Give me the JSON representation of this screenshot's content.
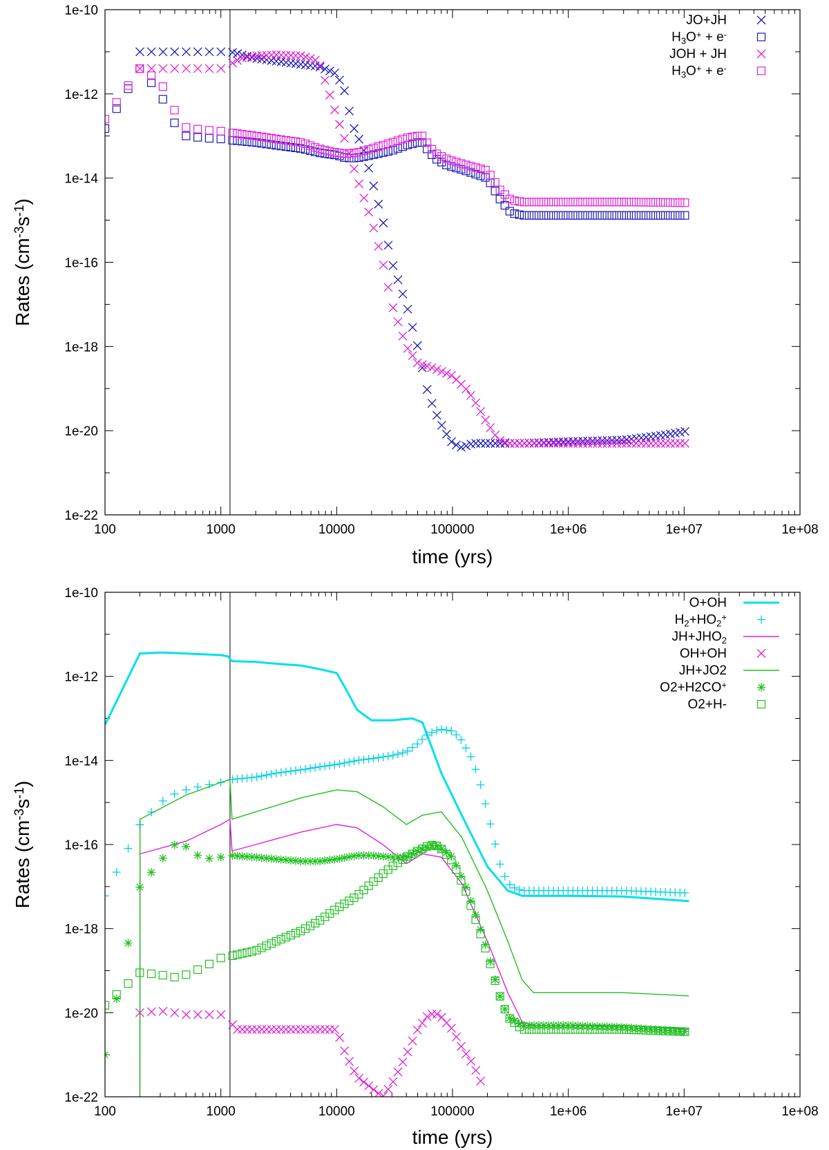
{
  "chart_data": [
    {
      "type": "scatter",
      "xscale": "log",
      "yscale": "log",
      "xlim": [
        100,
        100000000
      ],
      "ylim": [
        1e-22,
        1e-10
      ],
      "xlabel": "time (yrs)",
      "ylabel": "Rates (cm-3s-1)",
      "ylabel_parts": {
        "base": "Rates (cm",
        "sup1": "-3",
        "mid": "s",
        "sup2": "-1",
        "end": ")"
      },
      "x_ticks": [
        100,
        1000,
        10000,
        100000,
        1000000,
        10000000,
        100000000
      ],
      "x_tick_labels": [
        "100",
        "1000",
        "10000",
        "100000",
        "1e+06",
        "1e+07",
        "1e+08"
      ],
      "y_ticks": [
        1e-22,
        1e-20,
        1e-18,
        1e-16,
        1e-14,
        1e-12,
        1e-10
      ],
      "y_tick_labels": [
        "1e-22",
        "1e-20",
        "1e-18",
        "1e-16",
        "1e-14",
        "1e-12",
        "1e-10"
      ],
      "vline_x": 1200,
      "legend_position": "top-right",
      "series": [
        {
          "name": "JO+JH",
          "legend_parts": [
            {
              "t": "JO+JH"
            }
          ],
          "color": "#1a1ab8",
          "style": "cross",
          "x": [
            200,
            300,
            400,
            500,
            700,
            1000,
            1200,
            2000,
            3000,
            5000,
            7000,
            10000,
            12000,
            13500,
            17000,
            20000,
            25000,
            30000,
            40000,
            50000,
            60000,
            70000,
            85000,
            100000,
            120000,
            150000,
            200000,
            400000,
            1000000,
            3000000,
            7000000,
            11000000
          ],
          "y": [
            1e-11,
            1e-11,
            1e-11,
            1e-11,
            1e-11,
            1e-11,
            1e-11,
            7e-12,
            6e-12,
            5e-12,
            4.5e-12,
            3e-12,
            1e-12,
            2e-13,
            5e-14,
            1e-14,
            1e-15,
            1e-16,
            1e-17,
            1e-18,
            1e-19,
            3e-20,
            1e-20,
            5e-21,
            4e-21,
            5e-21,
            5e-21,
            5e-21,
            5.5e-21,
            6e-21,
            8e-21,
            1e-20
          ]
        },
        {
          "name": "H3O+ + e-",
          "legend_parts": [
            {
              "t": "H"
            },
            {
              "t": "3",
              "sub": true
            },
            {
              "t": "O"
            },
            {
              "t": "+",
              "sup": true
            },
            {
              "t": " + e"
            },
            {
              "t": "-",
              "sup": true
            }
          ],
          "color": "#1a1ab8",
          "style": "square",
          "x": [
            100,
            200,
            300,
            400,
            500,
            700,
            1000,
            1200,
            2000,
            3000,
            5000,
            7000,
            10000,
            12000,
            15000,
            20000,
            30000,
            40000,
            50000,
            55000,
            60000,
            70000,
            90000,
            120000,
            200000,
            260000,
            320000,
            400000,
            1000000,
            3000000,
            11000000
          ],
          "y": [
            1.5e-13,
            4e-12,
            1e-12,
            2e-13,
            1e-13,
            9e-14,
            8.5e-14,
            8e-14,
            7e-14,
            6e-14,
            5e-14,
            4e-14,
            3.5e-14,
            3e-14,
            3e-14,
            3.5e-14,
            4.5e-14,
            6e-14,
            7e-14,
            7e-14,
            5e-14,
            3e-14,
            2e-14,
            1.6e-14,
            1e-14,
            3e-15,
            1.5e-15,
            1.3e-15,
            1.3e-15,
            1.3e-15,
            1.3e-15
          ]
        },
        {
          "name": "JOH + JH",
          "legend_parts": [
            {
              "t": "JOH + JH"
            }
          ],
          "color": "#e020d8",
          "style": "cross",
          "x": [
            200,
            300,
            400,
            500,
            700,
            1000,
            1200,
            1500,
            2000,
            3000,
            5000,
            7000,
            10000,
            12000,
            15000,
            20000,
            25000,
            30000,
            40000,
            50000,
            70000,
            100000,
            130000,
            150000,
            200000,
            250000,
            300000,
            400000,
            1000000,
            3000000,
            11000000
          ],
          "y": [
            4e-12,
            4e-12,
            4e-12,
            4e-12,
            4e-12,
            4e-12,
            5e-12,
            7e-12,
            8e-12,
            8.5e-12,
            8e-12,
            6e-12,
            3e-13,
            7e-14,
            1e-14,
            1e-15,
            1e-16,
            1e-17,
            1e-18,
            4e-19,
            3e-19,
            2e-19,
            1e-19,
            6e-20,
            1.5e-20,
            6e-21,
            5e-21,
            5e-21,
            5e-21,
            5e-21,
            5e-21
          ]
        },
        {
          "name": "H3O+ + e-",
          "legend_parts": [
            {
              "t": "H"
            },
            {
              "t": "3",
              "sub": true
            },
            {
              "t": "O"
            },
            {
              "t": "+",
              "sup": true
            },
            {
              "t": " + e"
            },
            {
              "t": "-",
              "sup": true
            }
          ],
          "color": "#e020d8",
          "style": "square",
          "x": [
            100,
            200,
            300,
            400,
            500,
            700,
            1000,
            1200,
            2000,
            3000,
            5000,
            7000,
            10000,
            12000,
            15000,
            20000,
            30000,
            40000,
            50000,
            55000,
            60000,
            70000,
            90000,
            120000,
            200000,
            260000,
            320000,
            400000,
            1000000,
            3000000,
            11000000
          ],
          "y": [
            2.5e-13,
            4e-12,
            2e-12,
            4e-13,
            1.6e-13,
            1.4e-13,
            1.3e-13,
            1.2e-13,
            1e-13,
            8.5e-14,
            7e-14,
            5e-14,
            4e-14,
            3.8e-14,
            4e-14,
            5e-14,
            7e-14,
            9e-14,
            1e-13,
            1e-13,
            7e-14,
            4e-14,
            2.8e-14,
            2.2e-14,
            1.5e-14,
            5e-15,
            3e-15,
            2.7e-15,
            2.7e-15,
            2.7e-15,
            2.6e-15
          ]
        }
      ]
    },
    {
      "type": "line",
      "xscale": "log",
      "yscale": "log",
      "xlim": [
        100,
        100000000
      ],
      "ylim": [
        1e-22,
        1e-10
      ],
      "xlabel": "time (yrs)",
      "ylabel": "Rates (cm-3s-1)",
      "ylabel_parts": {
        "base": "Rates (cm",
        "sup1": "-3",
        "mid": "s",
        "sup2": "-1",
        "end": ")"
      },
      "x_ticks": [
        100,
        1000,
        10000,
        100000,
        1000000,
        10000000,
        100000000
      ],
      "x_tick_labels": [
        "100",
        "1000",
        "10000",
        "100000",
        "1e+06",
        "1e+07",
        "1e+08"
      ],
      "y_ticks": [
        1e-22,
        1e-20,
        1e-18,
        1e-16,
        1e-14,
        1e-12,
        1e-10
      ],
      "y_tick_labels": [
        "1e-22",
        "1e-20",
        "1e-18",
        "1e-16",
        "1e-14",
        "1e-12",
        "1e-10"
      ],
      "vline_x": 1200,
      "legend_position": "top-right",
      "series": [
        {
          "name": "O+OH",
          "legend_parts": [
            {
              "t": "O+OH"
            }
          ],
          "color": "#00e0e8",
          "style": "thickline",
          "x": [
            100,
            200,
            300,
            500,
            1000,
            1150,
            1250,
            2000,
            3000,
            5000,
            7000,
            10000,
            12000,
            15000,
            20000,
            30000,
            45000,
            55000,
            80000,
            120000,
            200000,
            300000,
            400000,
            1000000,
            3000000,
            11000000
          ],
          "y": [
            7e-14,
            3.5e-12,
            3.7e-12,
            3.5e-12,
            3.2e-12,
            3e-12,
            2.3e-12,
            2.2e-12,
            2e-12,
            1.8e-12,
            1.5e-12,
            1.2e-12,
            5e-13,
            1.6e-13,
            9e-14,
            9e-14,
            1e-13,
            8e-14,
            5e-15,
            5e-16,
            3e-17,
            8e-18,
            6e-18,
            6e-18,
            5.8e-18,
            4.5e-18
          ]
        },
        {
          "name": "H2+HO2+",
          "legend_parts": [
            {
              "t": "H"
            },
            {
              "t": "2",
              "sub": true
            },
            {
              "t": "+HO"
            },
            {
              "t": "2",
              "sub": true
            },
            {
              "t": "+",
              "sup": true
            }
          ],
          "color": "#00d0e0",
          "style": "plus",
          "x": [
            100,
            200,
            300,
            400,
            500,
            700,
            1000,
            1200,
            2000,
            3000,
            5000,
            7000,
            10000,
            15000,
            20000,
            30000,
            40000,
            50000,
            60000,
            70000,
            80000,
            100000,
            120000,
            150000,
            180000,
            220000,
            260000,
            300000,
            350000,
            400000,
            500000,
            1000000,
            3000000,
            11000000
          ],
          "y": [
            6e-18,
            3e-16,
            1e-15,
            1.6e-15,
            2e-15,
            2.5e-15,
            3e-15,
            3.5e-15,
            4e-15,
            5e-15,
            6e-15,
            7e-15,
            8e-15,
            1e-14,
            1.1e-14,
            1.3e-14,
            1.6e-14,
            2.5e-14,
            4e-14,
            5e-14,
            5.5e-14,
            5e-14,
            3e-14,
            1e-14,
            2e-15,
            2e-16,
            3e-17,
            1.2e-17,
            9e-18,
            8e-18,
            8e-18,
            8e-18,
            8e-18,
            7e-18
          ]
        },
        {
          "name": "JH+JHO2",
          "legend_parts": [
            {
              "t": "JH+JHO"
            },
            {
              "t": "2",
              "sub": true
            }
          ],
          "color": "#e020d8",
          "style": "line",
          "x": [
            200,
            200.5,
            500,
            1000,
            1200,
            1250,
            2000,
            5000,
            10000,
            15000,
            25000,
            40000,
            55000,
            80000,
            120000,
            200000,
            300000,
            400000,
            500000,
            1000000,
            3000000,
            11000000
          ],
          "y": [
            1e-22,
            6e-17,
            1.2e-16,
            3e-16,
            4e-16,
            7e-17,
            1e-16,
            2e-16,
            3e-16,
            2.5e-16,
            1e-16,
            3.5e-17,
            6e-17,
            5e-17,
            1.2e-17,
            5e-19,
            3e-20,
            6e-21,
            5e-21,
            5e-21,
            5e-21,
            4e-21
          ]
        },
        {
          "name": "OH+OH",
          "legend_parts": [
            {
              "t": "OH+OH"
            }
          ],
          "color": "#e020d8",
          "style": "cross",
          "x": [
            200,
            300,
            400,
            500,
            700,
            1000,
            1200,
            1300,
            2000,
            3000,
            5000,
            7000,
            10000,
            12000,
            15000,
            25000,
            30000,
            40000,
            50000,
            60000,
            70000,
            80000,
            100000,
            120000,
            150000,
            180000
          ],
          "y": [
            1e-20,
            1.1e-20,
            1e-20,
            9e-21,
            9e-21,
            9e-21,
            8e-21,
            4e-21,
            4e-21,
            4e-21,
            4e-21,
            4e-21,
            4e-21,
            1e-21,
            3e-22,
            1e-22,
            2e-22,
            1e-21,
            4e-21,
            8e-21,
            1e-20,
            8e-21,
            4e-21,
            1.5e-21,
            6e-22,
            2e-22
          ]
        },
        {
          "name": "JH+JO2",
          "legend_parts": [
            {
              "t": "JH+JO2"
            }
          ],
          "color": "#20c020",
          "style": "line",
          "x": [
            200,
            200.5,
            500,
            1000,
            1200,
            1250,
            2000,
            5000,
            10000,
            15000,
            25000,
            40000,
            55000,
            80000,
            120000,
            200000,
            300000,
            400000,
            500000,
            1000000,
            3000000,
            11000000
          ],
          "y": [
            1e-22,
            4e-16,
            1.5e-15,
            3e-15,
            3.5e-15,
            4e-16,
            6e-16,
            1.3e-15,
            2e-15,
            1.8e-15,
            8e-16,
            3e-16,
            5e-16,
            6e-16,
            1.5e-16,
            8e-18,
            5e-19,
            6e-20,
            3e-20,
            3e-20,
            3e-20,
            2.5e-20
          ]
        },
        {
          "name": "O2+H2CO+",
          "legend_parts": [
            {
              "t": "O2+H2CO"
            },
            {
              "t": "+",
              "sup": true
            }
          ],
          "color": "#20c020",
          "style": "asterisk",
          "x": [
            100,
            200,
            300,
            400,
            500,
            700,
            1000,
            1200,
            2000,
            3000,
            5000,
            7000,
            10000,
            15000,
            20000,
            30000,
            40000,
            50000,
            60000,
            70000,
            80000,
            100000,
            130000,
            160000,
            200000,
            250000,
            300000,
            400000,
            1000000,
            3000000,
            11000000
          ],
          "y": [
            1e-21,
            1e-17,
            4e-17,
            1e-16,
            9e-17,
            4.5e-17,
            5e-17,
            5.5e-17,
            5e-17,
            4.5e-17,
            4e-17,
            4e-17,
            4.5e-17,
            5.5e-17,
            5.5e-17,
            5e-17,
            5e-17,
            7e-17,
            8.5e-17,
            1e-16,
            8e-17,
            5e-17,
            1e-17,
            2e-18,
            3e-19,
            3e-20,
            8e-21,
            5e-21,
            5e-21,
            4.5e-21,
            3.5e-21
          ]
        },
        {
          "name": "O2+H-",
          "legend_parts": [
            {
              "t": "O2+H-"
            }
          ],
          "color": "#20c020",
          "style": "square",
          "x": [
            100,
            200,
            300,
            400,
            500,
            700,
            1000,
            1200,
            2000,
            3000,
            5000,
            7000,
            10000,
            15000,
            20000,
            30000,
            40000,
            50000,
            60000,
            70000,
            80000,
            100000,
            130000,
            160000,
            200000,
            250000,
            300000,
            400000,
            1000000,
            3000000,
            11000000
          ],
          "y": [
            1.5e-20,
            9e-20,
            8e-20,
            7e-20,
            8e-20,
            1.2e-19,
            2e-19,
            2.2e-19,
            3e-19,
            5e-19,
            9e-19,
            1.5e-18,
            3e-18,
            6e-18,
            1.2e-17,
            3e-17,
            5e-17,
            7e-17,
            9e-17,
            1e-16,
            8e-17,
            4e-17,
            8e-18,
            1.5e-18,
            2.5e-19,
            3e-20,
            8e-21,
            4e-21,
            4e-21,
            4e-21,
            3.5e-21
          ]
        }
      ]
    }
  ]
}
